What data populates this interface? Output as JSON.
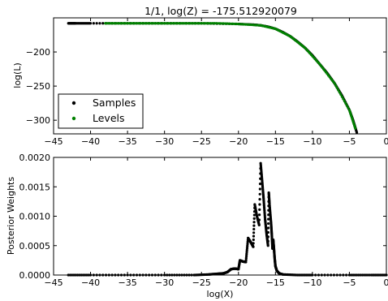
{
  "chart_data": [
    {
      "type": "scatter",
      "title": "1/1, log(Z) = -175.512920079",
      "xlabel": "",
      "ylabel": "log(L)",
      "xlim": [
        -45,
        0
      ],
      "ylim": [
        -320,
        -150
      ],
      "xticks": [
        "−45",
        "−40",
        "−35",
        "−30",
        "−25",
        "−20",
        "−15",
        "−10",
        "−5",
        "0"
      ],
      "yticks": [
        "−200",
        "−250",
        "−300"
      ],
      "legend": {
        "position": "lower-left",
        "entries": [
          {
            "label": "Samples",
            "color": "#000000"
          },
          {
            "label": "Levels",
            "color": "#008000"
          }
        ]
      },
      "series": [
        {
          "name": "Samples",
          "color": "#000000",
          "points": [
            [
              -43,
              -158
            ],
            [
              -42,
              -158
            ],
            [
              -40,
              -158
            ],
            [
              -35,
              -158
            ],
            [
              -30,
              -158
            ],
            [
              -25,
              -158
            ],
            [
              -20,
              -159
            ],
            [
              -18,
              -160
            ],
            [
              -17,
              -161
            ],
            [
              -16,
              -163
            ],
            [
              -15,
              -166
            ],
            [
              -14,
              -171
            ],
            [
              -13,
              -177
            ],
            [
              -12,
              -185
            ],
            [
              -11,
              -194
            ],
            [
              -10,
              -205
            ],
            [
              -9,
              -218
            ],
            [
              -8,
              -231
            ],
            [
              -7,
              -246
            ],
            [
              -6,
              -264
            ],
            [
              -5,
              -285
            ],
            [
              -4.5,
              -300
            ],
            [
              -4.0,
              -318
            ]
          ]
        },
        {
          "name": "Levels",
          "color": "#008000",
          "points": [
            [
              -38,
              -158
            ],
            [
              -35,
              -158
            ],
            [
              -32,
              -158
            ],
            [
              -29,
              -158
            ],
            [
              -26,
              -158
            ],
            [
              -23,
              -158
            ],
            [
              -20,
              -159
            ],
            [
              -17,
              -161
            ],
            [
              -15,
              -166
            ],
            [
              -13,
              -177
            ],
            [
              -11,
              -194
            ],
            [
              -9,
              -218
            ],
            [
              -7,
              -246
            ],
            [
              -5,
              -285
            ],
            [
              -4.2,
              -312
            ]
          ]
        }
      ]
    },
    {
      "type": "scatter",
      "title": "",
      "xlabel": "log(X)",
      "ylabel": "Posterior Weights",
      "xlim": [
        -45,
        0
      ],
      "ylim": [
        0,
        0.002
      ],
      "xticks": [
        "−45",
        "−40",
        "−35",
        "−30",
        "−25",
        "−20",
        "−15",
        "−10",
        "−5",
        "0"
      ],
      "yticks": [
        "0.0000",
        "0.0005",
        "0.0010",
        "0.0015",
        "0.0020"
      ],
      "series": [
        {
          "name": "",
          "color": "#000000",
          "points": [
            [
              -43,
              0
            ],
            [
              -40,
              0
            ],
            [
              -35,
              0
            ],
            [
              -30,
              0
            ],
            [
              -26,
              0
            ],
            [
              -24,
              1e-05
            ],
            [
              -23,
              2e-05
            ],
            [
              -22,
              3e-05
            ],
            [
              -21.5,
              5e-05
            ],
            [
              -21,
              0.0001
            ],
            [
              -20.5,
              0.00011
            ],
            [
              -20,
              0.0001
            ],
            [
              -19.8,
              0.00025
            ],
            [
              -19.4,
              0.00023
            ],
            [
              -19,
              0.00022
            ],
            [
              -18.7,
              0.00063
            ],
            [
              -18.3,
              0.00055
            ],
            [
              -18,
              0.00048
            ],
            [
              -17.8,
              0.0012
            ],
            [
              -17.5,
              0.001
            ],
            [
              -17.2,
              0.00085
            ],
            [
              -17,
              0.0019
            ],
            [
              -16.8,
              0.0016
            ],
            [
              -16.6,
              0.0013
            ],
            [
              -16.4,
              0.00095
            ],
            [
              -16.2,
              0.0007
            ],
            [
              -16.0,
              0.0005
            ],
            [
              -15.9,
              0.0014
            ],
            [
              -15.8,
              0.0012
            ],
            [
              -15.6,
              0.0009
            ],
            [
              -15.5,
              0.0007
            ],
            [
              -15.4,
              0.00045
            ],
            [
              -15.3,
              0.0006
            ],
            [
              -15.2,
              0.00045
            ],
            [
              -15.1,
              0.00028
            ],
            [
              -15.0,
              0.00015
            ],
            [
              -14.8,
              7e-05
            ],
            [
              -14.5,
              3e-05
            ],
            [
              -14,
              1e-05
            ],
            [
              -12,
              0
            ],
            [
              -10,
              0
            ],
            [
              -5,
              0
            ],
            [
              -2,
              0
            ],
            [
              0,
              0
            ]
          ]
        }
      ]
    }
  ]
}
